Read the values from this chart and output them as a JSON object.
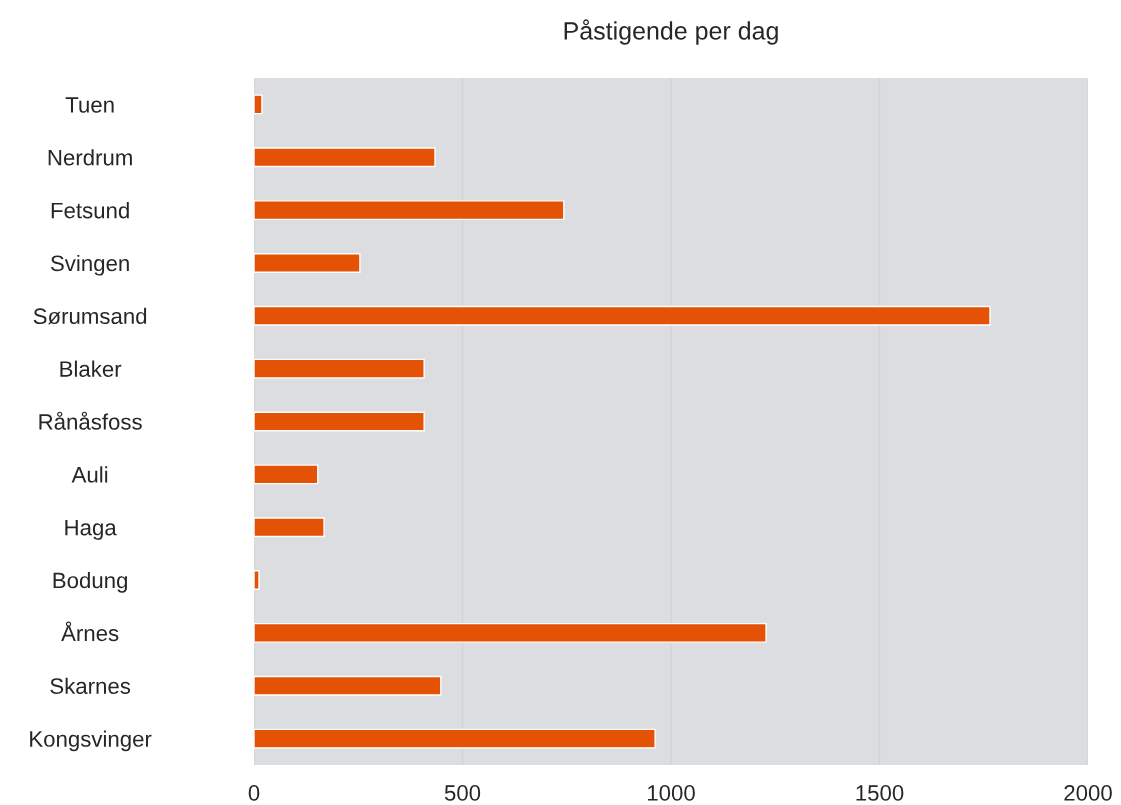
{
  "chart_data": {
    "type": "bar",
    "orientation": "horizontal",
    "title": "Påstigende per dag",
    "categories": [
      "Tuen",
      "Nerdrum",
      "Fetsund",
      "Svingen",
      "Sørumsand",
      "Blaker",
      "Rånåsfoss",
      "Auli",
      "Haga",
      "Bodung",
      "Årnes",
      "Skarnes",
      "Kongsvinger"
    ],
    "values": [
      19,
      434,
      743,
      254,
      1765,
      408,
      408,
      153,
      168,
      12,
      1228,
      448,
      962
    ],
    "color": "#e35205",
    "xlim": [
      0,
      2000
    ],
    "xticks": [
      0,
      500,
      1000,
      1500,
      2000
    ],
    "grid": "x"
  }
}
